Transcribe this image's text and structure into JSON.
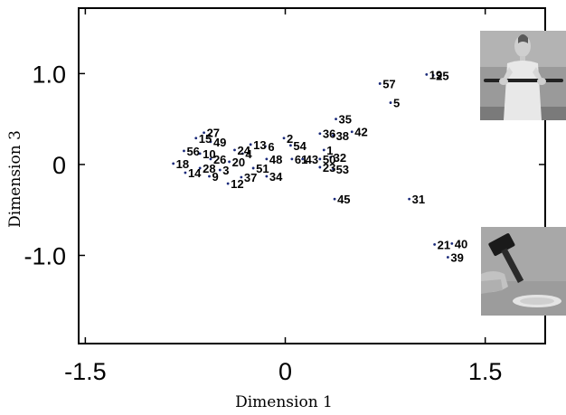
{
  "chart_data": {
    "type": "scatter",
    "title": "",
    "xlabel": "Dimension 1",
    "ylabel": "Dimension 3",
    "xlim": [
      -1.55,
      1.95
    ],
    "ylim": [
      -1.97,
      1.72
    ],
    "xticks": [
      -1.5,
      0,
      1.5
    ],
    "xtick_labels": [
      "-1.5",
      "0",
      "1.5"
    ],
    "yticks": [
      1.0,
      0,
      -1.0
    ],
    "ytick_labels": [
      "1.0",
      "0",
      "-1.0"
    ],
    "grid": false,
    "legend": "none",
    "point_color": "#1a2a7a",
    "points": [
      {
        "label": "19",
        "x": 1.06,
        "y": 0.99
      },
      {
        "label": "25",
        "x": 1.11,
        "y": 0.98
      },
      {
        "label": "57",
        "x": 0.71,
        "y": 0.89
      },
      {
        "label": "5",
        "x": 0.79,
        "y": 0.68
      },
      {
        "label": "35",
        "x": 0.38,
        "y": 0.5
      },
      {
        "label": "36",
        "x": 0.26,
        "y": 0.34
      },
      {
        "label": "38",
        "x": 0.36,
        "y": 0.32
      },
      {
        "label": "42",
        "x": 0.5,
        "y": 0.36
      },
      {
        "label": "2",
        "x": -0.01,
        "y": 0.29
      },
      {
        "label": "54",
        "x": 0.04,
        "y": 0.21
      },
      {
        "label": "1",
        "x": 0.29,
        "y": 0.16
      },
      {
        "label": "61",
        "x": 0.05,
        "y": 0.06
      },
      {
        "label": "43",
        "x": 0.13,
        "y": 0.06
      },
      {
        "label": "50",
        "x": 0.26,
        "y": 0.06
      },
      {
        "label": "32",
        "x": 0.34,
        "y": 0.08
      },
      {
        "label": "23",
        "x": 0.26,
        "y": -0.03
      },
      {
        "label": "53",
        "x": 0.36,
        "y": -0.05
      },
      {
        "label": "45",
        "x": 0.37,
        "y": -0.38
      },
      {
        "label": "31",
        "x": 0.93,
        "y": -0.38
      },
      {
        "label": "21",
        "x": 1.12,
        "y": -0.88
      },
      {
        "label": "40",
        "x": 1.25,
        "y": -0.87
      },
      {
        "label": "39",
        "x": 1.22,
        "y": -1.02
      },
      {
        "label": "15",
        "x": -0.67,
        "y": 0.29
      },
      {
        "label": "27",
        "x": -0.61,
        "y": 0.35
      },
      {
        "label": "49",
        "x": -0.56,
        "y": 0.25
      },
      {
        "label": "13",
        "x": -0.26,
        "y": 0.22
      },
      {
        "label": "6",
        "x": -0.15,
        "y": 0.2
      },
      {
        "label": "24",
        "x": -0.38,
        "y": 0.16
      },
      {
        "label": "4",
        "x": -0.32,
        "y": 0.12
      },
      {
        "label": "56",
        "x": -0.76,
        "y": 0.15
      },
      {
        "label": "10",
        "x": -0.64,
        "y": 0.12
      },
      {
        "label": "26",
        "x": -0.56,
        "y": 0.06
      },
      {
        "label": "20",
        "x": -0.42,
        "y": 0.03
      },
      {
        "label": "48",
        "x": -0.14,
        "y": 0.06
      },
      {
        "label": "18",
        "x": -0.84,
        "y": 0.01
      },
      {
        "label": "28",
        "x": -0.64,
        "y": -0.04
      },
      {
        "label": "3",
        "x": -0.49,
        "y": -0.06
      },
      {
        "label": "51",
        "x": -0.24,
        "y": -0.04
      },
      {
        "label": "14",
        "x": -0.75,
        "y": -0.09
      },
      {
        "label": "9",
        "x": -0.57,
        "y": -0.13
      },
      {
        "label": "37",
        "x": -0.33,
        "y": -0.14
      },
      {
        "label": "34",
        "x": -0.14,
        "y": -0.13
      },
      {
        "label": "12",
        "x": -0.43,
        "y": -0.21
      }
    ]
  },
  "images": [
    {
      "name": "photo-person-holding-bar",
      "description_icon": "person-stretching-bar-photo"
    },
    {
      "name": "photo-hand-hammer-plate",
      "description_icon": "hammer-and-plate-photo"
    }
  ]
}
